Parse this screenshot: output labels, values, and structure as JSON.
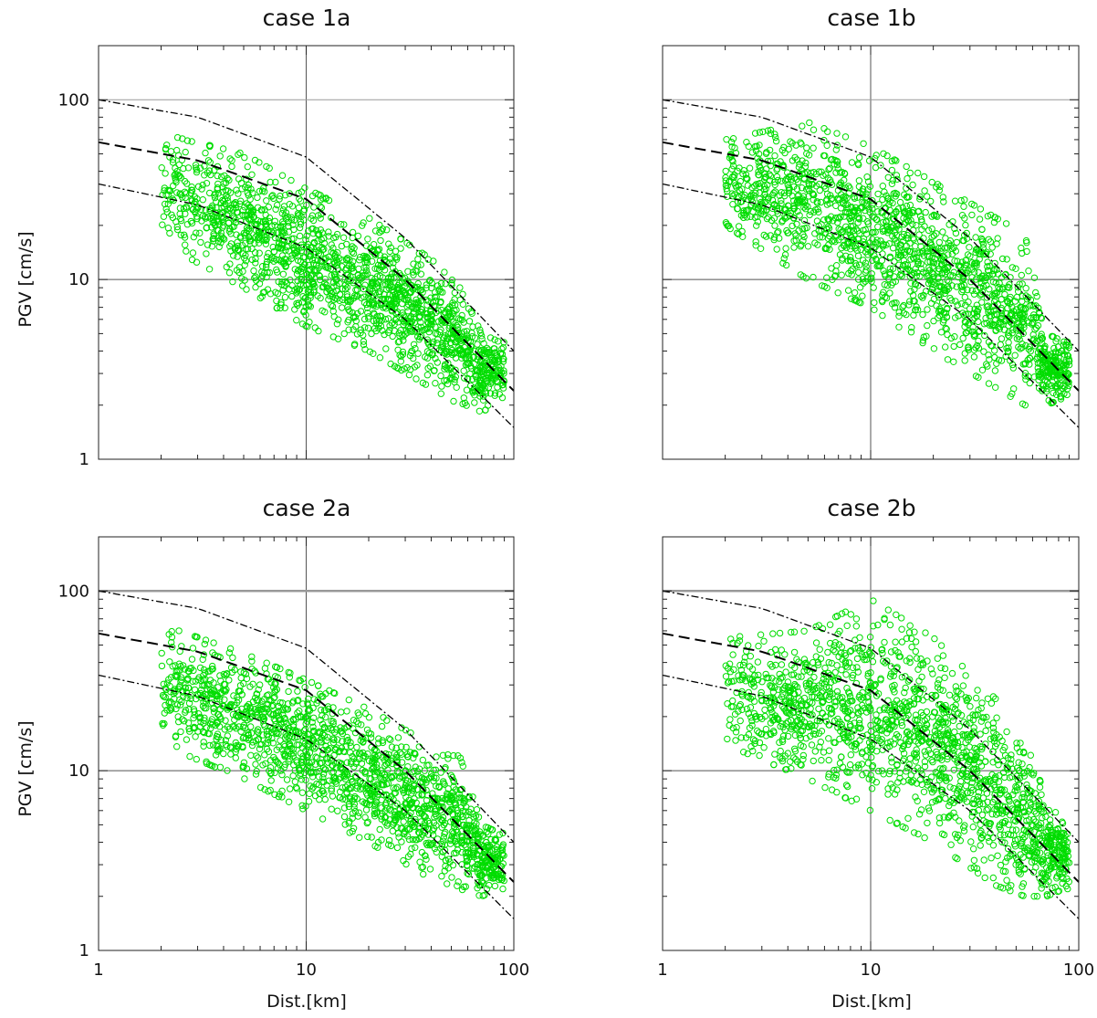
{
  "chart_data": [
    {
      "type": "scatter",
      "title": "case 1a",
      "xlabel": "",
      "ylabel": "PGV [cm/s]",
      "xscale": "log",
      "yscale": "log",
      "xlim": [
        1,
        100
      ],
      "ylim": [
        1,
        200
      ],
      "xticks": [],
      "yticks": [
        "1",
        "10",
        "100"
      ],
      "grid": "major lines at decades",
      "marker": "open circle",
      "marker_color": "#00dd00",
      "point_cloud": {
        "x_range": [
          2,
          90
        ],
        "upper_envelope": [
          [
            2,
            65
          ],
          [
            5,
            50
          ],
          [
            10,
            32
          ],
          [
            20,
            22
          ],
          [
            40,
            13
          ],
          [
            55,
            9
          ],
          [
            70,
            5
          ],
          [
            85,
            4.5
          ]
        ],
        "lower_envelope": [
          [
            2,
            16
          ],
          [
            5,
            9
          ],
          [
            10,
            5.5
          ],
          [
            20,
            4
          ],
          [
            40,
            2.5
          ],
          [
            55,
            2
          ],
          [
            70,
            1.8
          ],
          [
            85,
            2.2
          ]
        ]
      },
      "reference_curves": [
        {
          "style": "long-dash",
          "points": [
            [
              1,
              58
            ],
            [
              3,
              46
            ],
            [
              10,
              28
            ],
            [
              30,
              10
            ],
            [
              100,
              2.4
            ]
          ]
        },
        {
          "style": "dash-dot",
          "points": [
            [
              1,
              100
            ],
            [
              3,
              80
            ],
            [
              10,
              48
            ],
            [
              30,
              17
            ],
            [
              100,
              4
            ]
          ]
        },
        {
          "style": "dash-dot",
          "points": [
            [
              1,
              34
            ],
            [
              3,
              26
            ],
            [
              10,
              15
            ],
            [
              30,
              6
            ],
            [
              100,
              1.5
            ]
          ]
        }
      ]
    },
    {
      "type": "scatter",
      "title": "case 1b",
      "xlabel": "",
      "ylabel": "",
      "xscale": "log",
      "yscale": "log",
      "xlim": [
        1,
        100
      ],
      "ylim": [
        1,
        200
      ],
      "xticks": [],
      "yticks": [],
      "grid": "major lines at decades",
      "marker": "open circle",
      "marker_color": "#00dd00",
      "point_cloud": {
        "x_range": [
          2,
          90
        ],
        "upper_envelope": [
          [
            2,
            60
          ],
          [
            5,
            75
          ],
          [
            10,
            55
          ],
          [
            20,
            35
          ],
          [
            40,
            22
          ],
          [
            55,
            18
          ],
          [
            70,
            5
          ],
          [
            85,
            4.5
          ]
        ],
        "lower_envelope": [
          [
            2,
            20
          ],
          [
            5,
            10
          ],
          [
            10,
            7
          ],
          [
            20,
            4
          ],
          [
            40,
            2.5
          ],
          [
            55,
            2
          ],
          [
            70,
            2
          ],
          [
            85,
            2.2
          ]
        ]
      },
      "reference_curves": [
        {
          "style": "long-dash",
          "points": [
            [
              1,
              58
            ],
            [
              3,
              46
            ],
            [
              10,
              28
            ],
            [
              30,
              10
            ],
            [
              100,
              2.4
            ]
          ]
        },
        {
          "style": "dash-dot",
          "points": [
            [
              1,
              100
            ],
            [
              3,
              80
            ],
            [
              10,
              48
            ],
            [
              30,
              17
            ],
            [
              100,
              4
            ]
          ]
        },
        {
          "style": "dash-dot",
          "points": [
            [
              1,
              34
            ],
            [
              3,
              26
            ],
            [
              10,
              15
            ],
            [
              30,
              6
            ],
            [
              100,
              1.5
            ]
          ]
        }
      ]
    },
    {
      "type": "scatter",
      "title": "case 2a",
      "xlabel": "Dist.[km]",
      "ylabel": "PGV [cm/s]",
      "xscale": "log",
      "yscale": "log",
      "xlim": [
        1,
        100
      ],
      "ylim": [
        1,
        200
      ],
      "xticks": [
        "1",
        "10",
        "100"
      ],
      "yticks": [
        "1",
        "10",
        "100"
      ],
      "grid": "major lines at decades",
      "marker": "open circle",
      "marker_color": "#00dd00",
      "point_cloud": {
        "x_range": [
          2,
          90
        ],
        "upper_envelope": [
          [
            2,
            65
          ],
          [
            5,
            45
          ],
          [
            10,
            32
          ],
          [
            20,
            22
          ],
          [
            40,
            14
          ],
          [
            55,
            12
          ],
          [
            70,
            5
          ],
          [
            85,
            4.5
          ]
        ],
        "lower_envelope": [
          [
            2,
            14
          ],
          [
            5,
            9
          ],
          [
            10,
            6
          ],
          [
            20,
            4
          ],
          [
            40,
            2.5
          ],
          [
            55,
            2.2
          ],
          [
            70,
            2
          ],
          [
            85,
            2.2
          ]
        ]
      },
      "reference_curves": [
        {
          "style": "long-dash",
          "points": [
            [
              1,
              58
            ],
            [
              3,
              46
            ],
            [
              10,
              28
            ],
            [
              30,
              10
            ],
            [
              100,
              2.4
            ]
          ]
        },
        {
          "style": "dash-dot",
          "points": [
            [
              1,
              100
            ],
            [
              3,
              80
            ],
            [
              10,
              48
            ],
            [
              30,
              17
            ],
            [
              100,
              4
            ]
          ]
        },
        {
          "style": "dash-dot",
          "points": [
            [
              1,
              34
            ],
            [
              3,
              26
            ],
            [
              10,
              15
            ],
            [
              30,
              6
            ],
            [
              100,
              1.5
            ]
          ]
        }
      ]
    },
    {
      "type": "scatter",
      "title": "case 2b",
      "xlabel": "Dist.[km]",
      "ylabel": "",
      "xscale": "log",
      "yscale": "log",
      "xlim": [
        1,
        100
      ],
      "ylim": [
        1,
        200
      ],
      "xticks": [
        "1",
        "10",
        "100"
      ],
      "yticks": [],
      "grid": "major lines at decades",
      "marker": "open circle",
      "marker_color": "#00dd00",
      "point_cloud": {
        "x_range": [
          2,
          90
        ],
        "upper_envelope": [
          [
            2,
            55
          ],
          [
            5,
            60
          ],
          [
            10,
            90
          ],
          [
            20,
            55
          ],
          [
            40,
            25
          ],
          [
            55,
            15
          ],
          [
            70,
            7
          ],
          [
            85,
            5
          ]
        ],
        "lower_envelope": [
          [
            2,
            14
          ],
          [
            5,
            9
          ],
          [
            10,
            6
          ],
          [
            20,
            4
          ],
          [
            40,
            2.3
          ],
          [
            55,
            2
          ],
          [
            70,
            2
          ],
          [
            85,
            2.2
          ]
        ]
      },
      "reference_curves": [
        {
          "style": "long-dash",
          "points": [
            [
              1,
              58
            ],
            [
              3,
              46
            ],
            [
              10,
              28
            ],
            [
              30,
              10
            ],
            [
              100,
              2.4
            ]
          ]
        },
        {
          "style": "dash-dot",
          "points": [
            [
              1,
              100
            ],
            [
              3,
              80
            ],
            [
              10,
              48
            ],
            [
              30,
              17
            ],
            [
              100,
              4
            ]
          ]
        },
        {
          "style": "dash-dot",
          "points": [
            [
              1,
              34
            ],
            [
              3,
              26
            ],
            [
              10,
              15
            ],
            [
              30,
              6
            ],
            [
              100,
              1.5
            ]
          ]
        }
      ]
    }
  ]
}
